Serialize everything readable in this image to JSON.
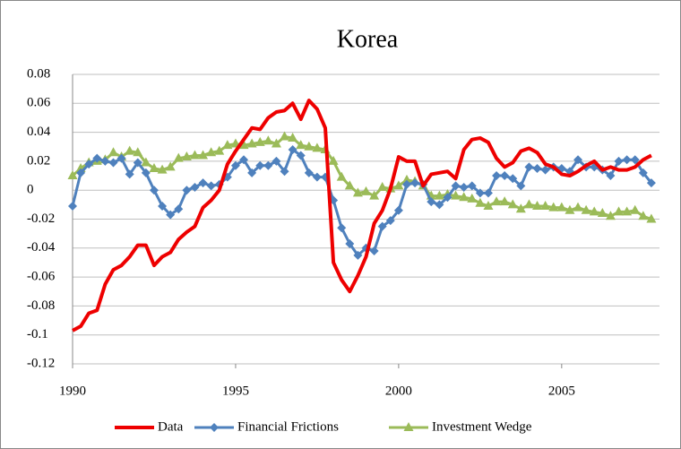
{
  "chart_data": {
    "type": "line",
    "title": "Korea",
    "x": [
      1990,
      1990.25,
      1990.5,
      1990.75,
      1991,
      1991.25,
      1991.5,
      1991.75,
      1992,
      1992.25,
      1992.5,
      1992.75,
      1993,
      1993.25,
      1993.5,
      1993.75,
      1994,
      1994.25,
      1994.5,
      1994.75,
      1995,
      1995.25,
      1995.5,
      1995.75,
      1996,
      1996.25,
      1996.5,
      1996.75,
      1997,
      1997.25,
      1997.5,
      1997.75,
      1998,
      1998.25,
      1998.5,
      1998.75,
      1999,
      1999.25,
      1999.5,
      1999.75,
      2000,
      2000.25,
      2000.5,
      2000.75,
      2001,
      2001.25,
      2001.5,
      2001.75,
      2002,
      2002.25,
      2002.5,
      2002.75,
      2003,
      2003.25,
      2003.5,
      2003.75,
      2004,
      2004.25,
      2004.5,
      2004.75,
      2005,
      2005.25,
      2005.5,
      2005.75,
      2006,
      2006.25,
      2006.5,
      2006.75,
      2007,
      2007.25,
      2007.5,
      2007.75
    ],
    "series": [
      {
        "name": "Data",
        "color": "#ee0000",
        "marker": "none",
        "values": [
          -0.097,
          -0.094,
          -0.085,
          -0.083,
          -0.065,
          -0.055,
          -0.052,
          -0.046,
          -0.038,
          -0.038,
          -0.052,
          -0.046,
          -0.043,
          -0.034,
          -0.029,
          -0.025,
          -0.012,
          -0.007,
          0.0,
          0.018,
          0.027,
          0.035,
          0.043,
          0.042,
          0.05,
          0.054,
          0.055,
          0.06,
          0.049,
          0.062,
          0.056,
          0.043,
          -0.05,
          -0.062,
          -0.07,
          -0.059,
          -0.046,
          -0.023,
          -0.014,
          0.001,
          0.023,
          0.02,
          0.02,
          0.003,
          0.011,
          0.012,
          0.013,
          0.008,
          0.028,
          0.035,
          0.036,
          0.033,
          0.022,
          0.016,
          0.019,
          0.027,
          0.029,
          0.026,
          0.018,
          0.016,
          0.011,
          0.01,
          0.013,
          0.017,
          0.02,
          0.014,
          0.016,
          0.014,
          0.014,
          0.016,
          0.021,
          0.024
        ]
      },
      {
        "name": "Financial Frictions",
        "color": "#4f81bd",
        "marker": "diamond",
        "values": [
          -0.011,
          0.012,
          0.018,
          0.022,
          0.02,
          0.019,
          0.022,
          0.011,
          0.019,
          0.012,
          0.0,
          -0.011,
          -0.017,
          -0.013,
          0.0,
          0.002,
          0.005,
          0.003,
          0.004,
          0.009,
          0.017,
          0.021,
          0.012,
          0.017,
          0.017,
          0.02,
          0.013,
          0.028,
          0.024,
          0.012,
          0.009,
          0.009,
          -0.007,
          -0.026,
          -0.037,
          -0.045,
          -0.04,
          -0.042,
          -0.025,
          -0.021,
          -0.014,
          0.004,
          0.005,
          0.004,
          -0.008,
          -0.01,
          -0.005,
          0.003,
          0.002,
          0.003,
          -0.002,
          -0.002,
          0.01,
          0.01,
          0.008,
          0.003,
          0.016,
          0.015,
          0.014,
          0.016,
          0.015,
          0.013,
          0.021,
          0.016,
          0.016,
          0.014,
          0.01,
          0.02,
          0.021,
          0.021,
          0.012,
          0.005
        ]
      },
      {
        "name": "Investment Wedge",
        "color": "#9bbb59",
        "marker": "triangle",
        "values": [
          0.01,
          0.015,
          0.019,
          0.02,
          0.021,
          0.026,
          0.023,
          0.027,
          0.026,
          0.019,
          0.015,
          0.014,
          0.016,
          0.022,
          0.023,
          0.024,
          0.024,
          0.026,
          0.027,
          0.031,
          0.032,
          0.031,
          0.032,
          0.033,
          0.034,
          0.032,
          0.037,
          0.036,
          0.031,
          0.03,
          0.029,
          0.028,
          0.02,
          0.009,
          0.003,
          -0.002,
          -0.001,
          -0.004,
          0.002,
          0.001,
          0.003,
          0.007,
          0.006,
          0.003,
          -0.004,
          -0.004,
          -0.003,
          -0.004,
          -0.005,
          -0.006,
          -0.009,
          -0.011,
          -0.008,
          -0.008,
          -0.01,
          -0.013,
          -0.01,
          -0.011,
          -0.011,
          -0.012,
          -0.012,
          -0.014,
          -0.012,
          -0.014,
          -0.015,
          -0.016,
          -0.018,
          -0.015,
          -0.015,
          -0.014,
          -0.018,
          -0.02
        ]
      }
    ],
    "xlim": [
      1990,
      2008
    ],
    "xticks": [
      1990,
      1995,
      2000,
      2005
    ],
    "ylim": [
      -0.12,
      0.08
    ],
    "yticks": [
      0.08,
      0.06,
      0.04,
      0.02,
      0,
      -0.02,
      -0.04,
      -0.06,
      -0.08,
      -0.1,
      -0.12
    ],
    "grid": true,
    "legend": "bottom"
  }
}
